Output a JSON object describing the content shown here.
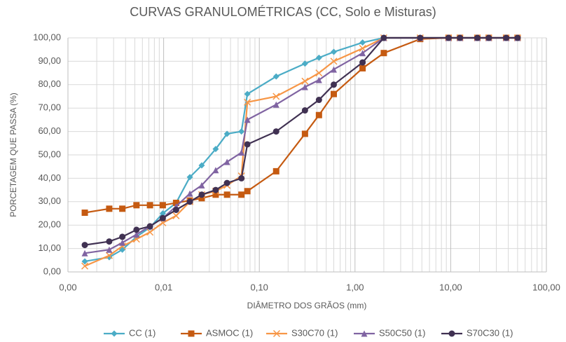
{
  "chart_data": {
    "type": "line",
    "title": "CURVAS GRANULOMÉTRICAS (CC, Solo e Misturas)",
    "x_label": "DIÂMETRO DOS GRÃOS (mm)",
    "y_label": "PORCETAGEM QUE PASSA (%)",
    "x_scale": "log",
    "grid": true,
    "legend": "bottom",
    "xlim": [
      0.001,
      100
    ],
    "ylim": [
      0,
      100
    ],
    "xticks": [
      {
        "value": 0.001,
        "label": "0,00"
      },
      {
        "value": 0.01,
        "label": "0,01"
      },
      {
        "value": 0.1,
        "label": "0,10"
      },
      {
        "value": 1,
        "label": "1,00"
      },
      {
        "value": 10,
        "label": "10,00"
      },
      {
        "value": 100,
        "label": "100,00"
      }
    ],
    "yticks": [
      {
        "value": 0,
        "label": "0,00"
      },
      {
        "value": 10,
        "label": "10,00"
      },
      {
        "value": 20,
        "label": "20,00"
      },
      {
        "value": 30,
        "label": "30,00"
      },
      {
        "value": 40,
        "label": "40,00"
      },
      {
        "value": 50,
        "label": "50,00"
      },
      {
        "value": 60,
        "label": "60,00"
      },
      {
        "value": 70,
        "label": "70,00"
      },
      {
        "value": 80,
        "label": "80,00"
      },
      {
        "value": 90,
        "label": "90,00"
      },
      {
        "value": 100,
        "label": "100,00"
      }
    ],
    "x": [
      0.0015,
      0.0027,
      0.0037,
      0.0052,
      0.0072,
      0.0098,
      0.0135,
      0.0188,
      0.025,
      0.035,
      0.046,
      0.065,
      0.075,
      0.15,
      0.3,
      0.42,
      0.6,
      1.2,
      2,
      4.8,
      9.5,
      12.5,
      19,
      25,
      38,
      50
    ],
    "series": [
      {
        "name": "CC (1)",
        "color": "#4bacc6",
        "marker": "diamond",
        "values": [
          4.5,
          6.3,
          9.5,
          15,
          19,
          25,
          29.5,
          40.5,
          45.5,
          52.5,
          59,
          60,
          76,
          83.5,
          89,
          91.5,
          94,
          98,
          100,
          100,
          100,
          100,
          100,
          100,
          100,
          100
        ]
      },
      {
        "name": "ASMOC (1)",
        "color": "#c55a11",
        "marker": "square",
        "values": [
          25.3,
          27,
          27,
          28.5,
          28.5,
          28.5,
          29.5,
          30.5,
          31.5,
          33,
          33,
          33,
          34.5,
          43,
          59,
          67,
          76,
          87,
          93.5,
          99.5,
          100,
          100,
          100,
          100,
          100,
          100
        ]
      },
      {
        "name": "S30C70 (1)",
        "color": "#f79646",
        "marker": "x",
        "values": [
          2.5,
          7,
          11,
          14,
          17,
          21,
          24,
          30,
          33,
          34.5,
          37,
          41,
          72.5,
          75,
          81.5,
          85,
          90,
          95.5,
          100,
          100,
          100,
          100,
          100,
          100,
          100,
          100
        ]
      },
      {
        "name": "S50C50 (1)",
        "color": "#8064a2",
        "marker": "triangle",
        "values": [
          8,
          9.5,
          12.5,
          16,
          19.5,
          23,
          28,
          33.5,
          37,
          43.5,
          47,
          51,
          65,
          71.5,
          79,
          82,
          86.5,
          93.5,
          100,
          100,
          100,
          100,
          100,
          100,
          100,
          100
        ]
      },
      {
        "name": "S70C30 (1)",
        "color": "#403152",
        "marker": "circle",
        "values": [
          11.5,
          13,
          15,
          18,
          19.5,
          23,
          26.5,
          30,
          33,
          35,
          38,
          40,
          54.5,
          60,
          69,
          73.5,
          80,
          89.5,
          100,
          100,
          100,
          100,
          100,
          100,
          100,
          100
        ]
      }
    ]
  }
}
